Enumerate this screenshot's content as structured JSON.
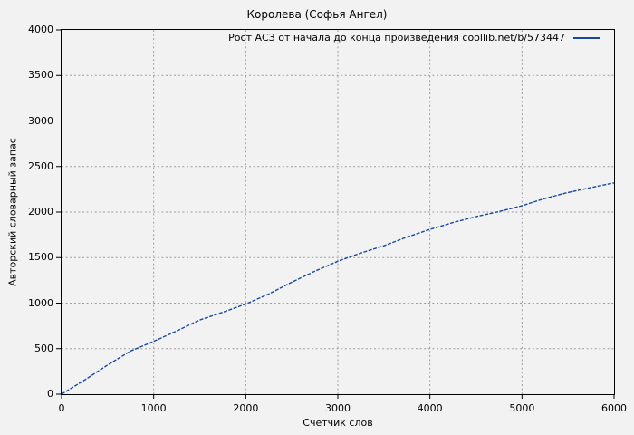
{
  "legend": {
    "label": "Рост АСЗ от начала до конца произведения coollib.net/b/573447"
  },
  "colors": {
    "background": "#f2f2f2",
    "line": "#16499c",
    "grid": "#9c9c9c",
    "axis": "#000000",
    "text": "#000000"
  },
  "chart_data": {
    "type": "line",
    "title": "Королева (Софья Ангел)",
    "xlabel": "Счетчик слов",
    "ylabel": "Авторский словарный запас",
    "xlim": [
      0,
      6000
    ],
    "ylim": [
      0,
      4000
    ],
    "x_ticks": [
      0,
      1000,
      2000,
      3000,
      4000,
      5000,
      6000
    ],
    "y_ticks": [
      0,
      500,
      1000,
      1500,
      2000,
      2500,
      3000,
      3500,
      4000
    ],
    "grid": true,
    "legend_position": "top-right-inside",
    "series": [
      {
        "name": "Рост АСЗ от начала до конца произведения coollib.net/b/573447",
        "color": "#16499c",
        "x": [
          0,
          250,
          500,
          750,
          1000,
          1250,
          1500,
          1750,
          2000,
          2250,
          2500,
          2750,
          3000,
          3250,
          3500,
          3750,
          4000,
          4250,
          4500,
          4750,
          5000,
          5250,
          5500,
          5750,
          6000
        ],
        "y": [
          0,
          155,
          320,
          475,
          580,
          695,
          815,
          900,
          990,
          1100,
          1230,
          1350,
          1460,
          1550,
          1630,
          1725,
          1810,
          1885,
          1950,
          2005,
          2070,
          2150,
          2215,
          2270,
          2320
        ]
      }
    ]
  }
}
